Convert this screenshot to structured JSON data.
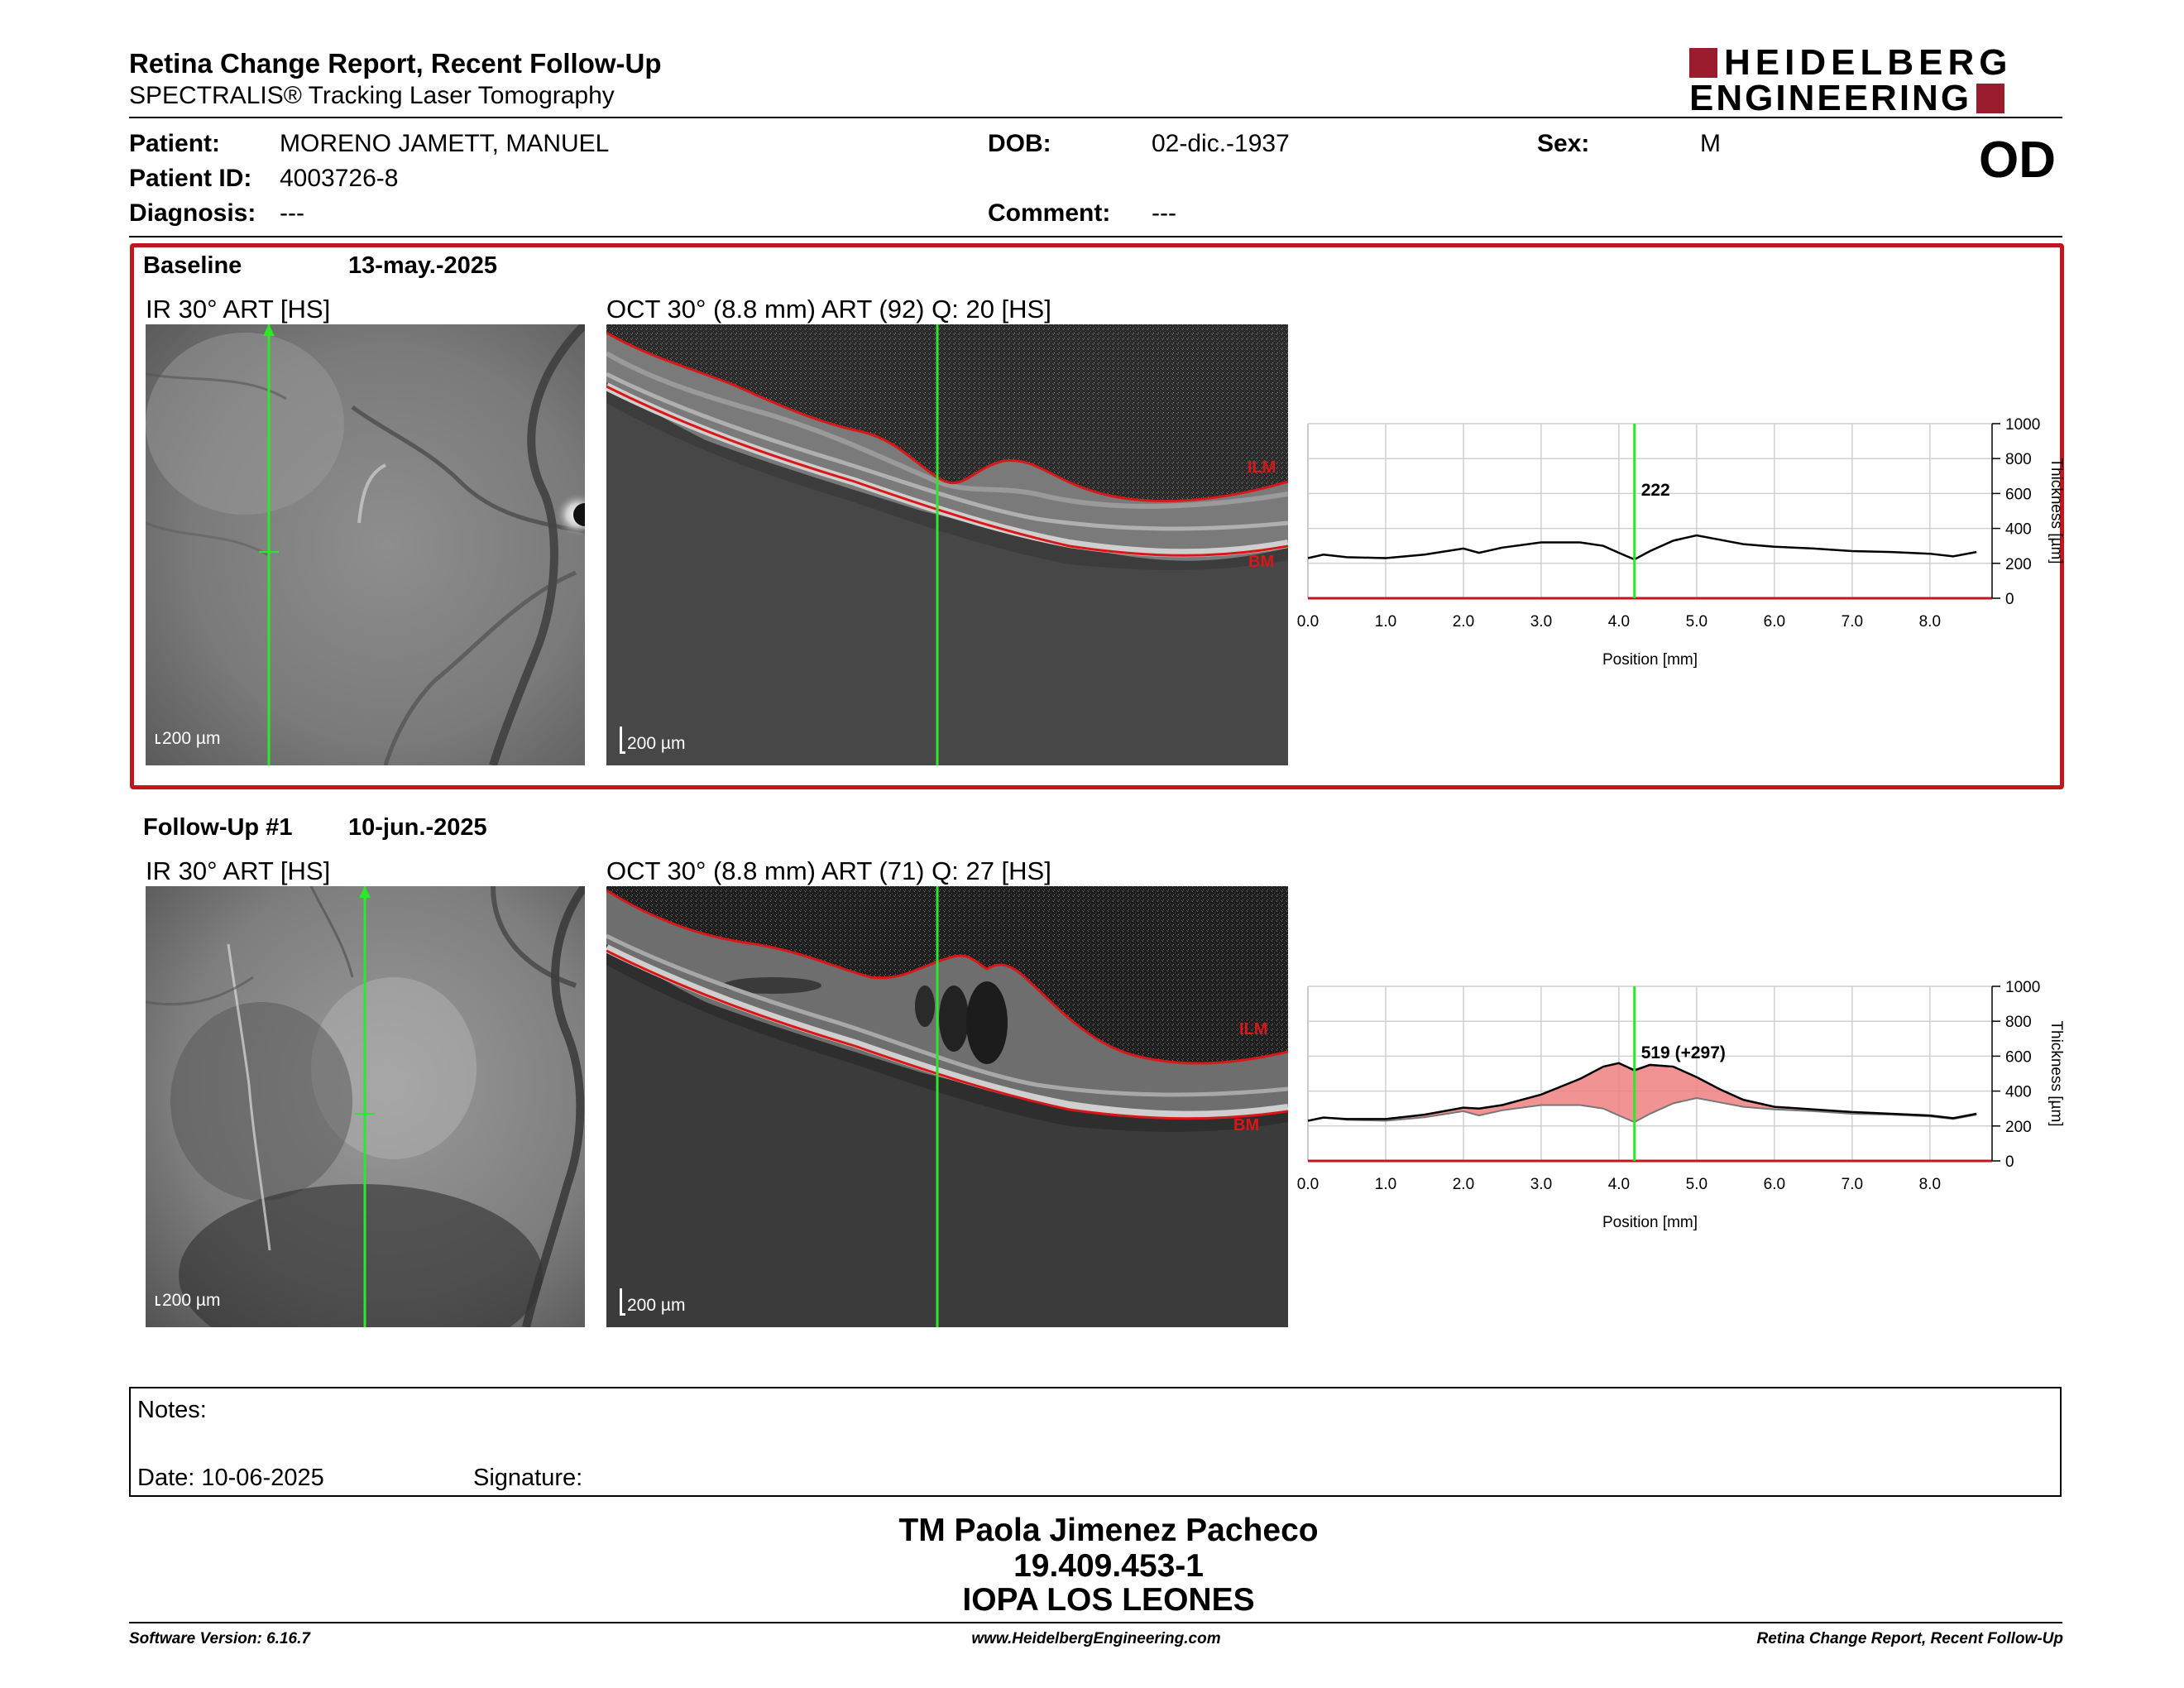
{
  "header": {
    "title": "Retina Change Report, Recent Follow-Up",
    "subtitle": "SPECTRALIS® Tracking Laser Tomography",
    "logo_line1": "HEIDELBERG",
    "logo_line2": "ENGINEERING",
    "eye": "OD"
  },
  "patient": {
    "patient_label": "Patient:",
    "patient_value": "MORENO JAMETT, MANUEL",
    "id_label": "Patient ID:",
    "id_value": "4003726-8",
    "diagnosis_label": "Diagnosis:",
    "diagnosis_value": "---",
    "dob_label": "DOB:",
    "dob_value": "02-dic.-1937",
    "comment_label": "Comment:",
    "comment_value": "---",
    "sex_label": "Sex:",
    "sex_value": "M"
  },
  "baseline": {
    "label": "Baseline",
    "date": "13-may.-2025",
    "ir_label": "IR 30° ART [HS]",
    "oct_label": "OCT 30° (8.8 mm) ART (92) Q: 20 [HS]",
    "scale_ir": "200 µm",
    "scale_oct": "200 µm",
    "ilm": "ILM",
    "bm": "BM"
  },
  "followup": {
    "label": "Follow-Up #1",
    "date": "10-jun.-2025",
    "ir_label": "IR 30° ART [HS]",
    "oct_label": "OCT 30° (8.8 mm) ART (71) Q: 27 [HS]",
    "scale_ir": "200 µm",
    "scale_oct": "200 µm",
    "ilm": "ILM",
    "bm": "BM"
  },
  "chart_data": [
    {
      "type": "line",
      "xlabel": "Position [mm]",
      "ylabel": "Thickness [µm]",
      "xlim": [
        0,
        8.8
      ],
      "ylim": [
        0,
        1000
      ],
      "x_ticks": [
        "0.0",
        "1.0",
        "2.0",
        "3.0",
        "4.0",
        "5.0",
        "6.0",
        "7.0",
        "8.0"
      ],
      "y_ticks": [
        "0",
        "200",
        "400",
        "600",
        "800",
        "1000"
      ],
      "marker_x": 4.2,
      "marker_label": "222",
      "grid": true,
      "x": [
        0.0,
        0.2,
        0.5,
        1.0,
        1.5,
        2.0,
        2.2,
        2.5,
        3.0,
        3.5,
        3.8,
        4.0,
        4.2,
        4.4,
        4.7,
        5.0,
        5.3,
        5.6,
        6.0,
        6.5,
        7.0,
        7.5,
        8.0,
        8.3,
        8.6
      ],
      "series": [
        {
          "values": [
            230,
            250,
            235,
            230,
            250,
            285,
            260,
            290,
            320,
            320,
            300,
            260,
            222,
            270,
            330,
            360,
            335,
            310,
            295,
            285,
            270,
            265,
            255,
            240,
            265
          ]
        }
      ]
    },
    {
      "type": "area",
      "xlabel": "Position [mm]",
      "ylabel": "Thickness [µm]",
      "xlim": [
        0,
        8.8
      ],
      "ylim": [
        0,
        1000
      ],
      "x_ticks": [
        "0.0",
        "1.0",
        "2.0",
        "3.0",
        "4.0",
        "5.0",
        "6.0",
        "7.0",
        "8.0"
      ],
      "y_ticks": [
        "0",
        "200",
        "400",
        "600",
        "800",
        "1000"
      ],
      "marker_x": 4.2,
      "marker_label": "519 (+297)",
      "grid": true,
      "x": [
        0.0,
        0.2,
        0.5,
        1.0,
        1.5,
        2.0,
        2.2,
        2.5,
        3.0,
        3.5,
        3.8,
        4.0,
        4.2,
        4.4,
        4.7,
        5.0,
        5.3,
        5.6,
        6.0,
        6.5,
        7.0,
        7.5,
        8.0,
        8.3,
        8.6
      ],
      "series": [
        {
          "values": [
            230,
            250,
            235,
            230,
            250,
            285,
            260,
            290,
            320,
            320,
            300,
            260,
            222,
            270,
            330,
            360,
            335,
            310,
            295,
            285,
            270,
            265,
            255,
            240,
            265
          ]
        },
        {
          "values": [
            230,
            248,
            240,
            240,
            265,
            305,
            300,
            320,
            380,
            470,
            540,
            560,
            519,
            550,
            540,
            480,
            410,
            350,
            310,
            295,
            280,
            270,
            260,
            245,
            270
          ]
        }
      ]
    }
  ],
  "notes": {
    "notes_label": "Notes:",
    "date_label": "Date: 10-06-2025",
    "signature_label": "Signature:"
  },
  "footer": {
    "name": "TM Paola Jimenez Pacheco",
    "rut": "19.409.453-1",
    "institution": "IOPA LOS LEONES",
    "software": "Software Version: 6.16.7",
    "website": "www.HeidelbergEngineering.com",
    "report_name": "Retina Change Report, Recent Follow-Up"
  },
  "colors": {
    "frame_red": "#c0161c",
    "logo_red": "#9a1b2b",
    "marker_green": "#2be82b",
    "segment_red": "#d81818",
    "fill_red": "#f08080"
  }
}
